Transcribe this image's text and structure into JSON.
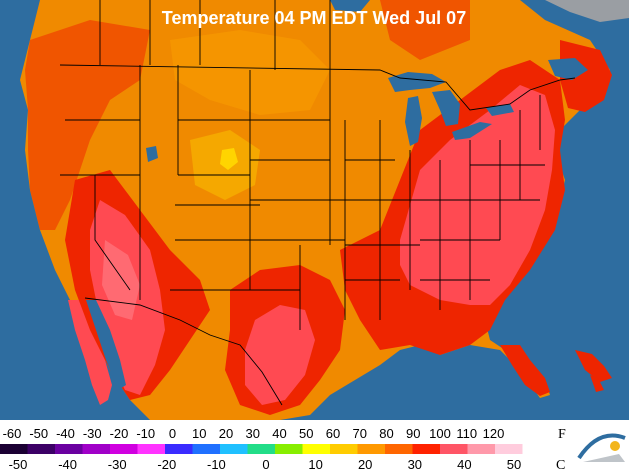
{
  "map": {
    "title": "Temperature 04 PM EDT Wed Jul 07",
    "colors": {
      "water": "#2e6da0",
      "land_ice": "#9a9ea3",
      "zone_60s": "#f08a00",
      "zone_70s": "#f05500",
      "zone_80s": "#ee2500",
      "zone_90s": "#ff4a52",
      "zone_100s": "#ff6a72",
      "yellow_spot": "#ffd400",
      "borders": "#000000"
    }
  },
  "legend": {
    "fahrenheit_unit": "F",
    "celsius_unit": "C",
    "fahrenheit_ticks": [
      "-60",
      "-50",
      "-40",
      "-30",
      "-20",
      "-10",
      "0",
      "10",
      "20",
      "30",
      "40",
      "50",
      "60",
      "70",
      "80",
      "90",
      "100",
      "110",
      "120"
    ],
    "celsius_ticks": [
      "-50",
      "-40",
      "-30",
      "-20",
      "-10",
      "0",
      "10",
      "20",
      "30",
      "40",
      "50"
    ],
    "scale_colors": [
      "#1b0033",
      "#3c0066",
      "#6a00a0",
      "#a000c8",
      "#d000e0",
      "#ff33ff",
      "#3a2bff",
      "#2070ff",
      "#20c0ff",
      "#22dd88",
      "#88ee00",
      "#ffff00",
      "#ffcc00",
      "#ff9900",
      "#ff6600",
      "#ff2200",
      "#ff5566",
      "#ff99aa",
      "#ffccdd",
      "#ffffff"
    ],
    "logo": "weather-logo"
  }
}
